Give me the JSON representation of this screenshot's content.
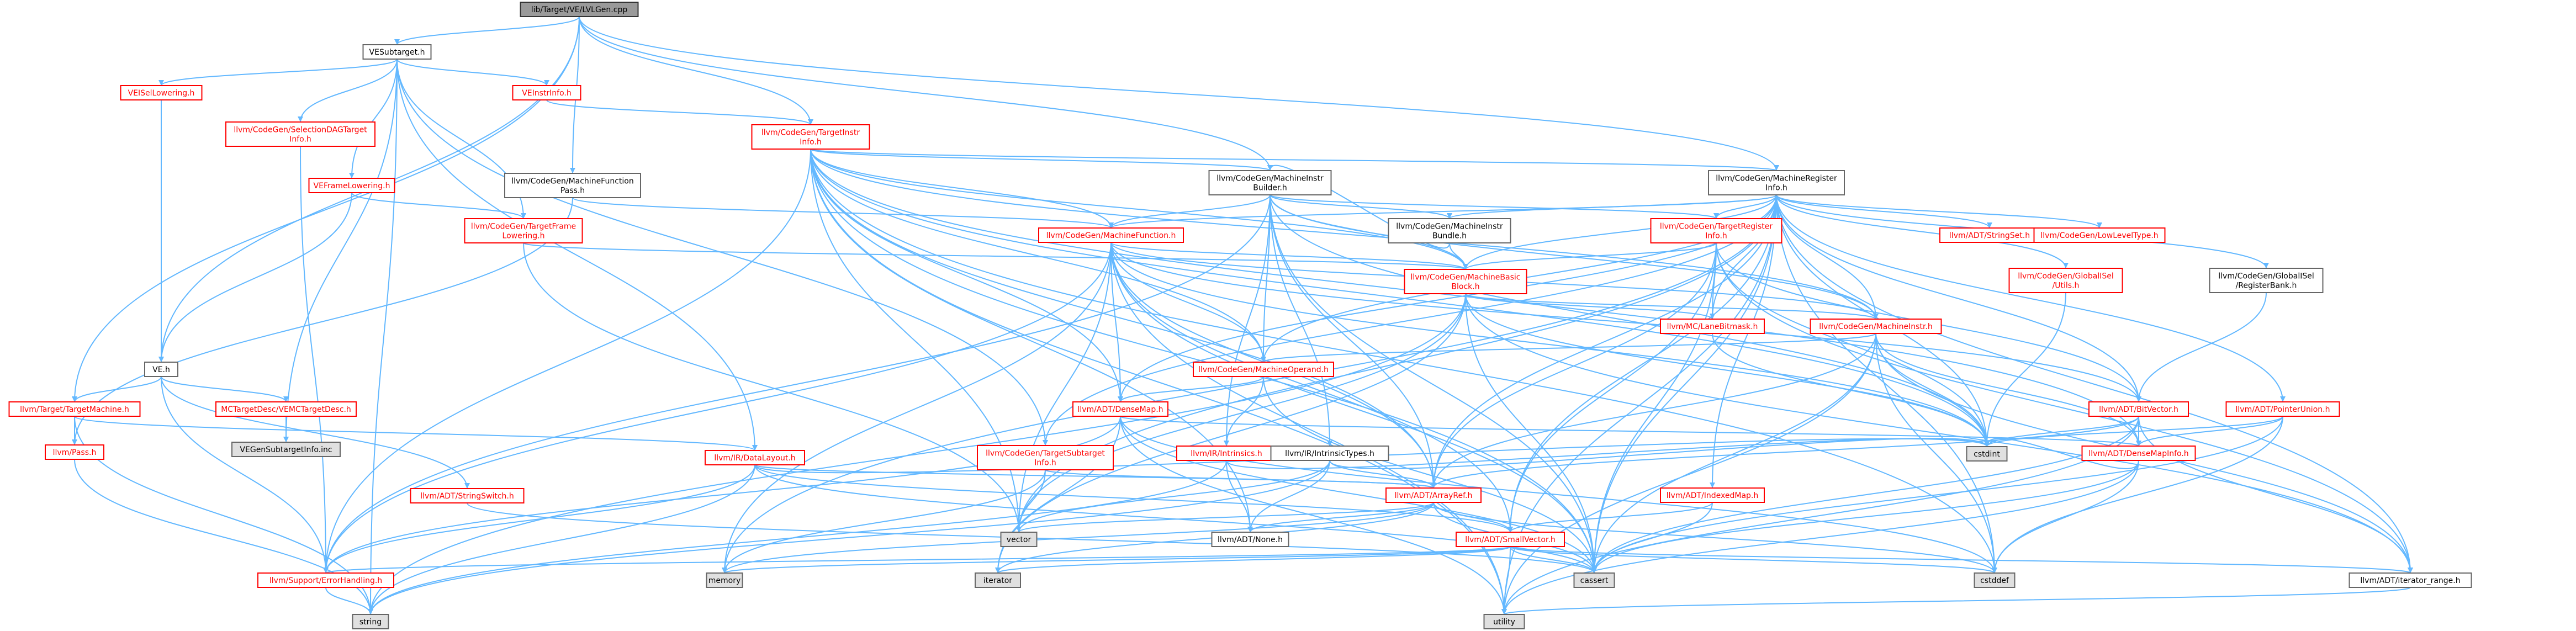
{
  "diagram": {
    "title": "lib/Target/VE/LVLGen.cpp",
    "colors": {
      "edge": "#63b8ff",
      "edge_red": "#d62728",
      "node_border_red": "#ff0000",
      "node_border_gray": "#666666",
      "node_border_root": "#333333",
      "node_fill_root": "#9a9a9a",
      "node_fill_system": "#e0e0e0",
      "node_fill_default": "#ffffff",
      "text_red": "#ff0000",
      "text_black": "#000000"
    },
    "nodes": [
      {
        "id": "root",
        "lines": [
          "lib/Target/VE/LVLGen.cpp"
        ],
        "kind": "root"
      },
      {
        "id": "vesubtarget",
        "lines": [
          "VESubtarget.h"
        ],
        "kind": "plain"
      },
      {
        "id": "veisellowering",
        "lines": [
          "VEISelLowering.h"
        ],
        "kind": "red"
      },
      {
        "id": "selectiondagtarget",
        "lines": [
          "llvm/CodeGen/SelectionDAGTarget",
          "Info.h"
        ],
        "kind": "red"
      },
      {
        "id": "veinstrinfo",
        "lines": [
          "VEInstrInfo.h"
        ],
        "kind": "red"
      },
      {
        "id": "targetinstrinfo",
        "lines": [
          "llvm/CodeGen/TargetInstr",
          "Info.h"
        ],
        "kind": "red"
      },
      {
        "id": "machinefunctionpass",
        "lines": [
          "llvm/CodeGen/MachineFunction",
          "Pass.h"
        ],
        "kind": "plain"
      },
      {
        "id": "veframelowering",
        "lines": [
          "VEFrameLowering.h"
        ],
        "kind": "red"
      },
      {
        "id": "targetframelowering",
        "lines": [
          "llvm/CodeGen/TargetFrame",
          "Lowering.h"
        ],
        "kind": "red"
      },
      {
        "id": "machineinstrbuilder",
        "lines": [
          "llvm/CodeGen/MachineInstr",
          "Builder.h"
        ],
        "kind": "plain"
      },
      {
        "id": "machineregisterinfo",
        "lines": [
          "llvm/CodeGen/MachineRegister",
          "Info.h"
        ],
        "kind": "plain"
      },
      {
        "id": "machinefunction",
        "lines": [
          "llvm/CodeGen/MachineFunction.h"
        ],
        "kind": "red"
      },
      {
        "id": "machineinstrbundle",
        "lines": [
          "llvm/CodeGen/MachineInstr",
          "Bundle.h"
        ],
        "kind": "plain"
      },
      {
        "id": "targetregisterinfo",
        "lines": [
          "llvm/CodeGen/TargetRegister",
          "Info.h"
        ],
        "kind": "red"
      },
      {
        "id": "stringset",
        "lines": [
          "llvm/ADT/StringSet.h"
        ],
        "kind": "red"
      },
      {
        "id": "lowleveltype",
        "lines": [
          "llvm/CodeGen/LowLevelType.h"
        ],
        "kind": "red"
      },
      {
        "id": "globalisel_utils",
        "lines": [
          "llvm/CodeGen/GlobalISel",
          "/Utils.h"
        ],
        "kind": "red"
      },
      {
        "id": "registerbank",
        "lines": [
          "llvm/CodeGen/GlobalISel",
          "/RegisterBank.h"
        ],
        "kind": "plain"
      },
      {
        "id": "machinebasicblock",
        "lines": [
          "llvm/CodeGen/MachineBasic",
          "Block.h"
        ],
        "kind": "red"
      },
      {
        "id": "lanebitmask",
        "lines": [
          "llvm/MC/LaneBitmask.h"
        ],
        "kind": "red"
      },
      {
        "id": "machineinstr",
        "lines": [
          "llvm/CodeGen/MachineInstr.h"
        ],
        "kind": "red"
      },
      {
        "id": "machineoperand",
        "lines": [
          "llvm/CodeGen/MachineOperand.h"
        ],
        "kind": "red"
      },
      {
        "id": "ve_h",
        "lines": [
          "VE.h"
        ],
        "kind": "plain"
      },
      {
        "id": "targetmachine",
        "lines": [
          "llvm/Target/TargetMachine.h"
        ],
        "kind": "red"
      },
      {
        "id": "mctargetdesc",
        "lines": [
          "MCTargetDesc/VEMCTargetDesc.h"
        ],
        "kind": "red"
      },
      {
        "id": "vegensubtargetinfo",
        "lines": [
          "VEGenSubtargetInfo.inc"
        ],
        "kind": "system"
      },
      {
        "id": "pass",
        "lines": [
          "llvm/Pass.h"
        ],
        "kind": "red"
      },
      {
        "id": "datalayout",
        "lines": [
          "llvm/IR/DataLayout.h"
        ],
        "kind": "red"
      },
      {
        "id": "stringswitch",
        "lines": [
          "llvm/ADT/StringSwitch.h"
        ],
        "kind": "red"
      },
      {
        "id": "densemap",
        "lines": [
          "llvm/ADT/DenseMap.h"
        ],
        "kind": "red"
      },
      {
        "id": "targetsubtargetinfo",
        "lines": [
          "llvm/CodeGen/TargetSubtarget",
          "Info.h"
        ],
        "kind": "red"
      },
      {
        "id": "intrinsics",
        "lines": [
          "llvm/IR/Intrinsics.h"
        ],
        "kind": "red"
      },
      {
        "id": "intrinsictypes",
        "lines": [
          "llvm/IR/IntrinsicTypes.h"
        ],
        "kind": "plain"
      },
      {
        "id": "arrayref",
        "lines": [
          "llvm/ADT/ArrayRef.h"
        ],
        "kind": "red"
      },
      {
        "id": "indexedmap",
        "lines": [
          "llvm/ADT/IndexedMap.h"
        ],
        "kind": "red"
      },
      {
        "id": "bitvector",
        "lines": [
          "llvm/ADT/BitVector.h"
        ],
        "kind": "red"
      },
      {
        "id": "pointerunion",
        "lines": [
          "llvm/ADT/PointerUnion.h"
        ],
        "kind": "red"
      },
      {
        "id": "densemapinfo",
        "lines": [
          "llvm/ADT/DenseMapInfo.h"
        ],
        "kind": "red"
      },
      {
        "id": "none",
        "lines": [
          "llvm/ADT/None.h"
        ],
        "kind": "plain"
      },
      {
        "id": "smallvector",
        "lines": [
          "llvm/ADT/SmallVector.h"
        ],
        "kind": "red"
      },
      {
        "id": "errorhandling",
        "lines": [
          "llvm/Support/ErrorHandling.h"
        ],
        "kind": "red"
      },
      {
        "id": "vector",
        "lines": [
          "vector"
        ],
        "kind": "system"
      },
      {
        "id": "memory",
        "lines": [
          "memory"
        ],
        "kind": "system"
      },
      {
        "id": "iterator",
        "lines": [
          "iterator"
        ],
        "kind": "system"
      },
      {
        "id": "cassert",
        "lines": [
          "cassert"
        ],
        "kind": "system"
      },
      {
        "id": "cstdint",
        "lines": [
          "cstdint"
        ],
        "kind": "system"
      },
      {
        "id": "cstddef",
        "lines": [
          "cstddef"
        ],
        "kind": "system"
      },
      {
        "id": "iterator_range",
        "lines": [
          "llvm/ADT/iterator_range.h"
        ],
        "kind": "plain"
      },
      {
        "id": "string",
        "lines": [
          "string"
        ],
        "kind": "system"
      },
      {
        "id": "utility",
        "lines": [
          "utility"
        ],
        "kind": "system"
      }
    ],
    "edges": [
      [
        "root",
        "vesubtarget"
      ],
      [
        "root",
        "targetinstrinfo"
      ],
      [
        "root",
        "machinefunctionpass"
      ],
      [
        "root",
        "machineinstrbuilder"
      ],
      [
        "root",
        "machineregisterinfo"
      ],
      [
        "root",
        "ve_h"
      ],
      [
        "root",
        "targetmachine"
      ],
      [
        "vesubtarget",
        "veisellowering"
      ],
      [
        "vesubtarget",
        "selectiondagtarget"
      ],
      [
        "vesubtarget",
        "veinstrinfo"
      ],
      [
        "vesubtarget",
        "veframelowering"
      ],
      [
        "vesubtarget",
        "targetframelowering"
      ],
      [
        "vesubtarget",
        "vegensubtargetinfo"
      ],
      [
        "vesubtarget",
        "datalayout"
      ],
      [
        "vesubtarget",
        "targetsubtargetinfo"
      ],
      [
        "vesubtarget",
        "string"
      ],
      [
        "veisellowering",
        "ve_h"
      ],
      [
        "veinstrinfo",
        "targetinstrinfo"
      ],
      [
        "veframelowering",
        "ve_h"
      ],
      [
        "veframelowering",
        "targetframelowering"
      ],
      [
        "selectiondagtarget",
        "errorhandling"
      ],
      [
        "targetinstrinfo",
        "machinefunction"
      ],
      [
        "targetinstrinfo",
        "machinebasicblock"
      ],
      [
        "targetinstrinfo",
        "machineinstr"
      ],
      [
        "targetinstrinfo",
        "machineoperand"
      ],
      [
        "targetinstrinfo",
        "densemap"
      ],
      [
        "targetinstrinfo",
        "arrayref"
      ],
      [
        "targetinstrinfo",
        "densemapinfo"
      ],
      [
        "targetinstrinfo",
        "none"
      ],
      [
        "targetinstrinfo",
        "errorhandling"
      ],
      [
        "targetinstrinfo",
        "cassert"
      ],
      [
        "targetinstrinfo",
        "cstddef"
      ],
      [
        "targetinstrinfo",
        "cstdint"
      ],
      [
        "targetinstrinfo",
        "utility"
      ],
      [
        "targetinstrinfo",
        "vector"
      ],
      [
        "targetinstrinfo",
        "machineinstrbuilder"
      ],
      [
        "targetinstrinfo",
        "machineregisterinfo"
      ],
      [
        "machinefunctionpass",
        "machinefunction"
      ],
      [
        "machinefunctionpass",
        "pass"
      ],
      [
        "targetframelowering",
        "machinebasicblock"
      ],
      [
        "targetframelowering",
        "vector"
      ],
      [
        "machineinstrbuilder",
        "machinefunction"
      ],
      [
        "machineinstrbuilder",
        "machinebasicblock"
      ],
      [
        "machineinstrbuilder",
        "machineinstr"
      ],
      [
        "machineinstrbuilder",
        "machineinstrbundle"
      ],
      [
        "machineinstrbuilder",
        "machineoperand"
      ],
      [
        "machineinstrbuilder",
        "targetregisterinfo"
      ],
      [
        "machineinstrbuilder",
        "intrinsics"
      ],
      [
        "machineinstrbuilder",
        "intrinsictypes"
      ],
      [
        "machineinstrbuilder",
        "arrayref"
      ],
      [
        "machineinstrbuilder",
        "errorhandling"
      ],
      [
        "machineinstrbuilder",
        "cassert"
      ],
      [
        "machineinstrbuilder",
        "cstdint"
      ],
      [
        "machineregisterinfo",
        "machinefunction"
      ],
      [
        "machineregisterinfo",
        "machinebasicblock"
      ],
      [
        "machineregisterinfo",
        "machineinstr"
      ],
      [
        "machineregisterinfo",
        "machineinstrbundle"
      ],
      [
        "machineregisterinfo",
        "machineoperand"
      ],
      [
        "machineregisterinfo",
        "targetregisterinfo"
      ],
      [
        "machineregisterinfo",
        "stringset"
      ],
      [
        "machineregisterinfo",
        "lowleveltype"
      ],
      [
        "machineregisterinfo",
        "globalisel_utils"
      ],
      [
        "machineregisterinfo",
        "registerbank"
      ],
      [
        "machineregisterinfo",
        "lanebitmask"
      ],
      [
        "machineregisterinfo",
        "targetsubtargetinfo"
      ],
      [
        "machineregisterinfo",
        "arrayref"
      ],
      [
        "machineregisterinfo",
        "bitvector"
      ],
      [
        "machineregisterinfo",
        "densemap"
      ],
      [
        "machineregisterinfo",
        "indexedmap"
      ],
      [
        "machineregisterinfo",
        "pointerunion"
      ],
      [
        "machineregisterinfo",
        "smallvector"
      ],
      [
        "machineregisterinfo",
        "iterator_range"
      ],
      [
        "machineregisterinfo",
        "cassert"
      ],
      [
        "machineregisterinfo",
        "cstddef"
      ],
      [
        "machineregisterinfo",
        "cstdint"
      ],
      [
        "machineregisterinfo",
        "memory"
      ],
      [
        "machineregisterinfo",
        "utility"
      ],
      [
        "machineregisterinfo",
        "vector"
      ],
      [
        "machinefunction",
        "machinebasicblock"
      ],
      [
        "machinefunction",
        "machineinstr"
      ],
      [
        "machinefunction",
        "machineoperand"
      ],
      [
        "machinefunction",
        "arrayref"
      ],
      [
        "machinefunction",
        "bitvector"
      ],
      [
        "machinefunction",
        "densemap"
      ],
      [
        "machinefunction",
        "smallvector"
      ],
      [
        "machinefunction",
        "errorhandling"
      ],
      [
        "machinefunction",
        "cassert"
      ],
      [
        "machinefunction",
        "cstdint"
      ],
      [
        "machinefunction",
        "memory"
      ],
      [
        "machinefunction",
        "utility"
      ],
      [
        "machinefunction",
        "vector"
      ],
      [
        "machineinstrbundle",
        "machineinstrbuilder"
      ],
      [
        "machineinstrbundle",
        "machinebasicblock"
      ],
      [
        "targetregisterinfo",
        "machinebasicblock"
      ],
      [
        "targetregisterinfo",
        "lanebitmask"
      ],
      [
        "targetregisterinfo",
        "arrayref"
      ],
      [
        "targetregisterinfo",
        "bitvector"
      ],
      [
        "targetregisterinfo",
        "smallvector"
      ],
      [
        "targetregisterinfo",
        "iterator_range"
      ],
      [
        "targetregisterinfo",
        "cassert"
      ],
      [
        "targetregisterinfo",
        "cstdint"
      ],
      [
        "globalisel_utils",
        "cstdint"
      ],
      [
        "registerbank",
        "bitvector"
      ],
      [
        "machinebasicblock",
        "machineinstr"
      ],
      [
        "machinebasicblock",
        "lanebitmask"
      ],
      [
        "machinebasicblock",
        "iterator_range"
      ],
      [
        "machinebasicblock",
        "cassert"
      ],
      [
        "machinebasicblock",
        "cstdint"
      ],
      [
        "machinebasicblock",
        "iterator"
      ],
      [
        "machinebasicblock",
        "string"
      ],
      [
        "machinebasicblock",
        "vector"
      ],
      [
        "lanebitmask",
        "cstdint"
      ],
      [
        "machineinstr",
        "machineoperand"
      ],
      [
        "machineinstr",
        "densemapinfo"
      ],
      [
        "machineinstr",
        "arrayref"
      ],
      [
        "machineinstr",
        "iterator_range"
      ],
      [
        "machineinstr",
        "cassert"
      ],
      [
        "machineinstr",
        "cstddef"
      ],
      [
        "machineinstr",
        "cstdint"
      ],
      [
        "machineinstr",
        "utility"
      ],
      [
        "machineoperand",
        "densemap"
      ],
      [
        "machineoperand",
        "intrinsics"
      ],
      [
        "machineoperand",
        "cassert"
      ],
      [
        "ve_h",
        "targetmachine"
      ],
      [
        "ve_h",
        "mctargetdesc"
      ],
      [
        "ve_h",
        "stringswitch"
      ],
      [
        "ve_h",
        "errorhandling"
      ],
      [
        "targetmachine",
        "pass"
      ],
      [
        "targetmachine",
        "datalayout"
      ],
      [
        "targetmachine",
        "string"
      ],
      [
        "mctargetdesc",
        "vegensubtargetinfo"
      ],
      [
        "pass",
        "string"
      ],
      [
        "datalayout",
        "arrayref"
      ],
      [
        "datalayout",
        "smallvector"
      ],
      [
        "datalayout",
        "errorhandling"
      ],
      [
        "datalayout",
        "cassert"
      ],
      [
        "datalayout",
        "cstdint"
      ],
      [
        "datalayout",
        "string"
      ],
      [
        "stringswitch",
        "cassert"
      ],
      [
        "densemap",
        "densemapinfo"
      ],
      [
        "densemap",
        "errorhandling"
      ],
      [
        "densemap",
        "cassert"
      ],
      [
        "densemap",
        "cstddef"
      ],
      [
        "densemap",
        "iterator"
      ],
      [
        "densemap",
        "utility"
      ],
      [
        "targetsubtargetinfo",
        "arrayref"
      ],
      [
        "targetsubtargetinfo",
        "memory"
      ],
      [
        "targetsubtargetinfo",
        "vector"
      ],
      [
        "intrinsics",
        "none"
      ],
      [
        "intrinsics",
        "cstdint"
      ],
      [
        "intrinsics",
        "string"
      ],
      [
        "intrinsictypes",
        "arrayref"
      ],
      [
        "intrinsictypes",
        "none"
      ],
      [
        "intrinsictypes",
        "cstdint"
      ],
      [
        "intrinsictypes",
        "string"
      ],
      [
        "intrinsictypes",
        "vector"
      ],
      [
        "arrayref",
        "none"
      ],
      [
        "arrayref",
        "smallvector"
      ],
      [
        "arrayref",
        "cassert"
      ],
      [
        "arrayref",
        "cstddef"
      ],
      [
        "arrayref",
        "iterator"
      ],
      [
        "arrayref",
        "memory"
      ],
      [
        "arrayref",
        "vector"
      ],
      [
        "indexedmap",
        "smallvector"
      ],
      [
        "indexedmap",
        "cassert"
      ],
      [
        "bitvector",
        "arrayref"
      ],
      [
        "bitvector",
        "densemapinfo"
      ],
      [
        "bitvector",
        "iterator_range"
      ],
      [
        "bitvector",
        "cassert"
      ],
      [
        "bitvector",
        "cstdint"
      ],
      [
        "bitvector",
        "utility"
      ],
      [
        "pointerunion",
        "densemapinfo"
      ],
      [
        "pointerunion",
        "cassert"
      ],
      [
        "pointerunion",
        "cstddef"
      ],
      [
        "pointerunion",
        "cstdint"
      ],
      [
        "densemapinfo",
        "cassert"
      ],
      [
        "densemapinfo",
        "cstddef"
      ],
      [
        "densemapinfo",
        "cstdint"
      ],
      [
        "densemapinfo",
        "utility"
      ],
      [
        "smallvector",
        "iterator_range"
      ],
      [
        "smallvector",
        "cassert"
      ],
      [
        "smallvector",
        "cstddef"
      ],
      [
        "smallvector",
        "iterator"
      ],
      [
        "smallvector",
        "memory"
      ],
      [
        "smallvector",
        "utility"
      ],
      [
        "smallvector",
        "errorhandling"
      ],
      [
        "errorhandling",
        "string"
      ],
      [
        "iterator_range",
        "utility"
      ]
    ]
  }
}
